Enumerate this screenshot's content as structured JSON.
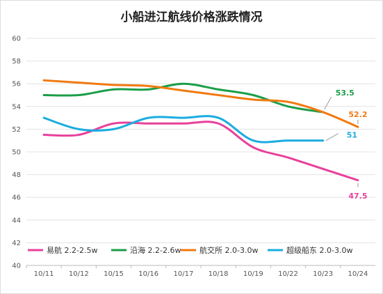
{
  "chart_data": {
    "type": "line",
    "title": "小船进江航线价格涨跌情况",
    "xlabel": "",
    "ylabel": "",
    "categories": [
      "10/11",
      "10/12",
      "10/15",
      "10/16",
      "10/17",
      "10/18",
      "10/19",
      "10/22",
      "10/23",
      "10/24"
    ],
    "ylim": [
      40,
      60
    ],
    "yticks": [
      40,
      42,
      44,
      46,
      48,
      50,
      52,
      54,
      56,
      58,
      60
    ],
    "grid": true,
    "legend": "bottom",
    "series": [
      {
        "name": "易航 2.2-2.5w",
        "color": "#e8409b",
        "values": [
          51.5,
          51.5,
          52.5,
          52.5,
          52.5,
          52.5,
          50.4,
          49.5,
          48.5,
          47.5
        ],
        "end_label": "47.5"
      },
      {
        "name": "沿海 2.2-2.6w",
        "color": "#1a9e48",
        "values": [
          55.0,
          55.0,
          55.5,
          55.5,
          56.0,
          55.5,
          55.0,
          54.0,
          53.5,
          null
        ],
        "end_label": "53.5"
      },
      {
        "name": "航交所 2.0-3.0w",
        "color": "#f07a10",
        "values": [
          56.3,
          56.1,
          55.9,
          55.8,
          55.4,
          55.0,
          54.6,
          54.4,
          53.5,
          52.2
        ],
        "end_label": "52.2"
      },
      {
        "name": "超级船东 2.0-3.0w",
        "color": "#1aace0",
        "values": [
          53.0,
          52.0,
          52.0,
          53.0,
          53.0,
          53.0,
          51.0,
          51.0,
          51.0,
          null
        ],
        "end_label": "51"
      }
    ]
  }
}
